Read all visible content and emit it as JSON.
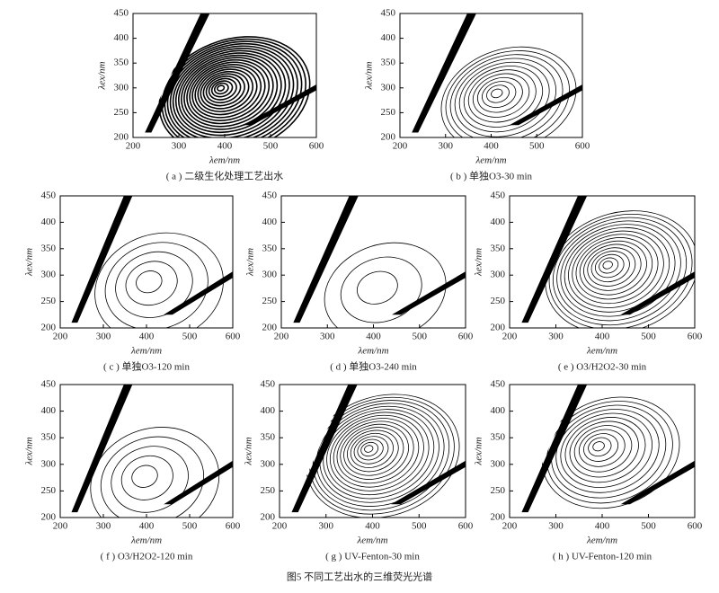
{
  "chart_data": [
    {
      "type": "contour",
      "caption": "( a ) 二级生化处理工艺出水",
      "xlabel": "λem/nm",
      "ylabel": "λex/nm",
      "xlim": [
        200,
        600
      ],
      "ylim": [
        200,
        450
      ],
      "xticks": [
        200,
        300,
        400,
        500,
        600
      ],
      "yticks": [
        200,
        250,
        300,
        350,
        400,
        450
      ]
    },
    {
      "type": "contour",
      "caption": "( b ) 单独O3-30 min",
      "xlabel": "λem/nm",
      "ylabel": "λex/nm",
      "xlim": [
        200,
        600
      ],
      "ylim": [
        200,
        450
      ],
      "xticks": [
        200,
        300,
        400,
        500,
        600
      ],
      "yticks": [
        200,
        250,
        300,
        350,
        400,
        450
      ]
    },
    {
      "type": "contour",
      "caption": "( c ) 单独O3-120 min",
      "xlabel": "λem/nm",
      "ylabel": "λex/nm",
      "xlim": [
        200,
        600
      ],
      "ylim": [
        200,
        450
      ],
      "xticks": [
        200,
        300,
        400,
        500,
        600
      ],
      "yticks": [
        200,
        250,
        300,
        350,
        400,
        450
      ]
    },
    {
      "type": "contour",
      "caption": "( d ) 单独O3-240 min",
      "xlabel": "λem/nm",
      "ylabel": "λex/nm",
      "xlim": [
        200,
        600
      ],
      "ylim": [
        200,
        450
      ],
      "xticks": [
        200,
        300,
        400,
        500,
        600
      ],
      "yticks": [
        200,
        250,
        300,
        350,
        400,
        450
      ]
    },
    {
      "type": "contour",
      "caption": "( e ) O3/H2O2-30 min",
      "xlabel": "λem/nm",
      "ylabel": "λex/nm",
      "xlim": [
        200,
        600
      ],
      "ylim": [
        200,
        450
      ],
      "xticks": [
        200,
        300,
        400,
        500,
        600
      ],
      "yticks": [
        200,
        250,
        300,
        350,
        400,
        450
      ]
    },
    {
      "type": "contour",
      "caption": "( f ) O3/H2O2-120 min",
      "xlabel": "λem/nm",
      "ylabel": "λex/nm",
      "xlim": [
        200,
        600
      ],
      "ylim": [
        200,
        450
      ],
      "xticks": [
        200,
        300,
        400,
        500,
        600
      ],
      "yticks": [
        200,
        250,
        300,
        350,
        400,
        450
      ]
    },
    {
      "type": "contour",
      "caption": "( g ) UV-Fenton-30 min",
      "xlabel": "λem/nm",
      "ylabel": "λex/nm",
      "xlim": [
        200,
        600
      ],
      "ylim": [
        200,
        450
      ],
      "xticks": [
        200,
        300,
        400,
        500,
        600
      ],
      "yticks": [
        200,
        250,
        300,
        350,
        400,
        450
      ]
    },
    {
      "type": "contour",
      "caption": "( h ) UV-Fenton-120 min",
      "xlabel": "λem/nm",
      "ylabel": "λex/nm",
      "xlim": [
        200,
        600
      ],
      "ylim": [
        200,
        450
      ],
      "xticks": [
        200,
        300,
        400,
        500,
        600
      ],
      "yticks": [
        200,
        250,
        300,
        350,
        400,
        450
      ]
    }
  ],
  "figure_caption": "图5   不同工艺出水的三维荧光光谱"
}
